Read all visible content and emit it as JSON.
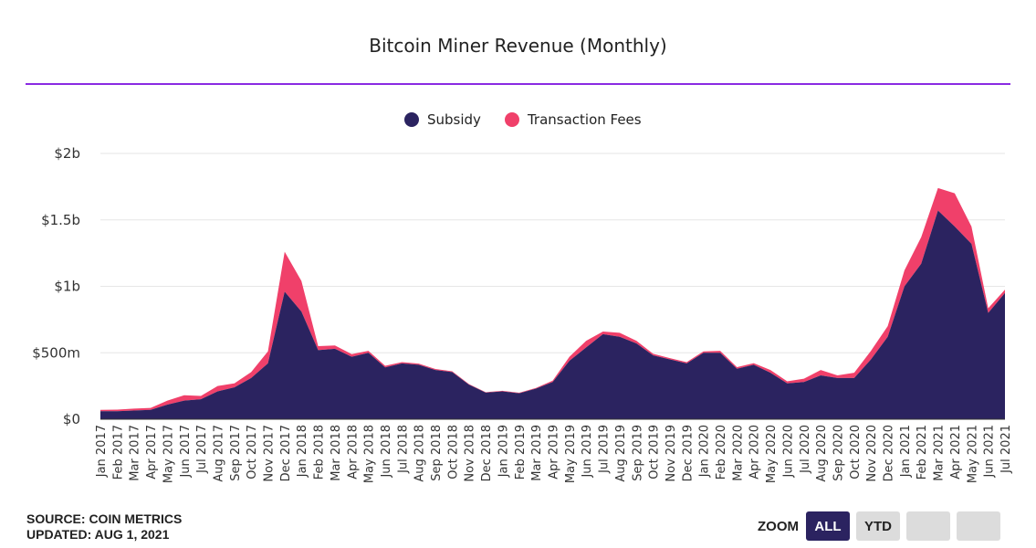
{
  "title": "Bitcoin Miner Revenue (Monthly)",
  "legend": [
    {
      "label": "Subsidy",
      "color": "#2b2360"
    },
    {
      "label": "Transaction Fees",
      "color": "#f0406a"
    }
  ],
  "footer": {
    "source": "SOURCE: COIN METRICS",
    "updated": "UPDATED: AUG 1, 2021"
  },
  "zoom": {
    "label": "ZOOM",
    "buttons": [
      "ALL",
      "YTD",
      "",
      ""
    ],
    "active": "ALL"
  },
  "chart_data": {
    "type": "area",
    "stacked": true,
    "title": "Bitcoin Miner Revenue (Monthly)",
    "y_ticks": [
      "$0",
      "$500m",
      "$1b",
      "$1.5b",
      "$2b"
    ],
    "ylim": [
      0,
      2000
    ],
    "grid": true,
    "legend_position": "top-center",
    "categories": [
      "Jan 2017",
      "Feb 2017",
      "Mar 2017",
      "Apr 2017",
      "May 2017",
      "Jun 2017",
      "Jul 2017",
      "Aug 2017",
      "Sep 2017",
      "Oct 2017",
      "Nov 2017",
      "Dec 2017",
      "Jan 2018",
      "Feb 2018",
      "Mar 2018",
      "Apr 2018",
      "May 2018",
      "Jun 2018",
      "Jul 2018",
      "Aug 2018",
      "Sep 2018",
      "Oct 2018",
      "Nov 2018",
      "Dec 2018",
      "Jan 2019",
      "Feb 2019",
      "Mar 2019",
      "Apr 2019",
      "May 2019",
      "Jun 2019",
      "Jul 2019",
      "Aug 2019",
      "Sep 2019",
      "Oct 2019",
      "Nov 2019",
      "Dec 2019",
      "Jan 2020",
      "Feb 2020",
      "Mar 2020",
      "Apr 2020",
      "May 2020",
      "Jun 2020",
      "Jul 2020",
      "Aug 2020",
      "Sep 2020",
      "Oct 2020",
      "Nov 2020",
      "Dec 2020",
      "Jan 2021",
      "Feb 2021",
      "Mar 2021",
      "Apr 2021",
      "May 2021",
      "Jun 2021",
      "Jul 2021"
    ],
    "series": [
      {
        "name": "Subsidy",
        "color": "#2b2360",
        "values": [
          60,
          60,
          65,
          70,
          110,
          140,
          150,
          210,
          240,
          310,
          420,
          960,
          810,
          520,
          530,
          470,
          500,
          390,
          420,
          410,
          370,
          355,
          260,
          200,
          210,
          195,
          230,
          280,
          440,
          540,
          640,
          620,
          570,
          480,
          450,
          420,
          500,
          500,
          380,
          410,
          350,
          270,
          280,
          330,
          310,
          310,
          450,
          620,
          1000,
          1170,
          1570,
          1450,
          1320,
          800,
          950
        ]
      },
      {
        "name": "Transaction Fees",
        "color": "#f0406a",
        "values": [
          10,
          12,
          15,
          15,
          30,
          40,
          25,
          40,
          30,
          45,
          90,
          300,
          230,
          30,
          25,
          20,
          15,
          12,
          10,
          8,
          8,
          6,
          5,
          4,
          4,
          4,
          5,
          10,
          30,
          50,
          20,
          30,
          20,
          12,
          10,
          10,
          10,
          15,
          12,
          12,
          20,
          15,
          25,
          40,
          20,
          40,
          65,
          80,
          120,
          200,
          170,
          250,
          130,
          35,
          25
        ]
      }
    ]
  }
}
